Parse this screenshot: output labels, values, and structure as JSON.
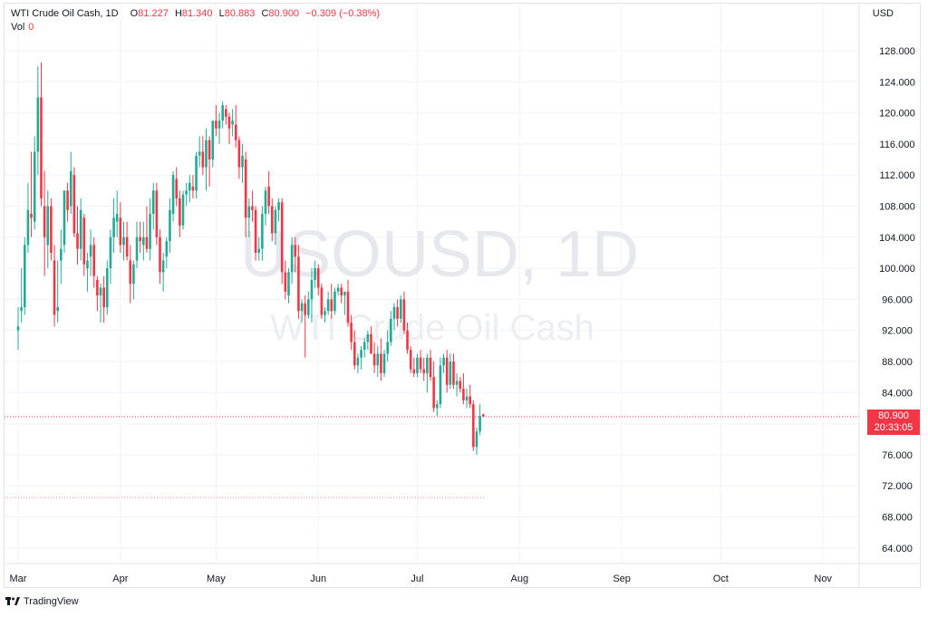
{
  "legend": {
    "symbol": "WTI Crude Oil Cash, 1D",
    "open_label": "O",
    "open": "81.227",
    "high_label": "H",
    "high": "81.340",
    "low_label": "L",
    "low": "80.883",
    "close_label": "C",
    "close": "80.900",
    "change": "−0.309 (−0.38%)",
    "vol_label": "Vol",
    "vol_value": "0"
  },
  "currency": "USD",
  "watermark": {
    "ticker": "USOUSD, 1D",
    "name": "WTI Crude Oil Cash"
  },
  "last_price": {
    "value": "80.900",
    "countdown": "20:33:05"
  },
  "footer": {
    "brand": "TradingView"
  },
  "colors": {
    "up": "#22ab94",
    "down": "#f23645",
    "grid": "#f0f3fa",
    "axis_text": "#131722"
  },
  "chart_data": {
    "type": "candlestick",
    "title": "WTI Crude Oil Cash, 1D",
    "ylim": [
      60,
      132
    ],
    "y_ticks": [
      64,
      68,
      72,
      76,
      80,
      84,
      88,
      92,
      96,
      100,
      104,
      108,
      112,
      116,
      120,
      124,
      128
    ],
    "x_ticks": [
      "Mar",
      "Apr",
      "May",
      "Jun",
      "Jul",
      "Aug",
      "Sep",
      "Oct",
      "Nov"
    ],
    "x_tick_days": [
      1,
      32,
      61,
      92,
      122,
      153,
      184,
      214,
      245
    ],
    "last_price_line": 80.9,
    "reference_line": 70.5,
    "candles": [
      {
        "d": 1,
        "o": 92.0,
        "h": 95.0,
        "l": 89.5,
        "c": 92.5
      },
      {
        "d": 2,
        "o": 94.5,
        "h": 100.0,
        "l": 93.0,
        "c": 95.0
      },
      {
        "d": 3,
        "o": 95.0,
        "h": 104.0,
        "l": 94.0,
        "c": 103.0
      },
      {
        "d": 4,
        "o": 103.0,
        "h": 111.0,
        "l": 102.0,
        "c": 107.5
      },
      {
        "d": 5,
        "o": 107.0,
        "h": 115.0,
        "l": 104.0,
        "c": 106.5
      },
      {
        "d": 6,
        "o": 106.0,
        "h": 117.0,
        "l": 105.0,
        "c": 115.0
      },
      {
        "d": 7,
        "o": 115.0,
        "h": 126.0,
        "l": 112.0,
        "c": 122.0
      },
      {
        "d": 8,
        "o": 122.0,
        "h": 126.5,
        "l": 108.0,
        "c": 109.0
      },
      {
        "d": 9,
        "o": 108.0,
        "h": 112.5,
        "l": 99.0,
        "c": 104.0
      },
      {
        "d": 10,
        "o": 103.0,
        "h": 110.0,
        "l": 100.0,
        "c": 108.0
      },
      {
        "d": 11,
        "o": 108.0,
        "h": 109.0,
        "l": 101.0,
        "c": 102.0
      },
      {
        "d": 12,
        "o": 101.0,
        "h": 103.0,
        "l": 92.5,
        "c": 94.0
      },
      {
        "d": 13,
        "o": 94.5,
        "h": 101.0,
        "l": 93.0,
        "c": 95.0
      },
      {
        "d": 14,
        "o": 101.0,
        "h": 105.0,
        "l": 98.0,
        "c": 102.5
      },
      {
        "d": 15,
        "o": 103.0,
        "h": 110.0,
        "l": 102.0,
        "c": 110.0
      },
      {
        "d": 16,
        "o": 110.0,
        "h": 111.0,
        "l": 106.0,
        "c": 107.5
      },
      {
        "d": 17,
        "o": 108.0,
        "h": 115.0,
        "l": 107.0,
        "c": 112.5
      },
      {
        "d": 18,
        "o": 112.0,
        "h": 113.0,
        "l": 104.0,
        "c": 104.5
      },
      {
        "d": 19,
        "o": 104.5,
        "h": 108.0,
        "l": 100.5,
        "c": 102.5
      },
      {
        "d": 20,
        "o": 102.5,
        "h": 109.0,
        "l": 101.0,
        "c": 107.5
      },
      {
        "d": 21,
        "o": 106.5,
        "h": 107.0,
        "l": 99.0,
        "c": 100.5
      },
      {
        "d": 22,
        "o": 100.0,
        "h": 102.0,
        "l": 97.0,
        "c": 101.0
      },
      {
        "d": 23,
        "o": 101.5,
        "h": 105.0,
        "l": 99.0,
        "c": 103.0
      },
      {
        "d": 24,
        "o": 103.0,
        "h": 104.0,
        "l": 97.5,
        "c": 99.0
      },
      {
        "d": 25,
        "o": 98.5,
        "h": 99.0,
        "l": 94.5,
        "c": 96.5
      },
      {
        "d": 26,
        "o": 96.5,
        "h": 98.0,
        "l": 93.0,
        "c": 97.5
      },
      {
        "d": 27,
        "o": 97.5,
        "h": 99.0,
        "l": 93.0,
        "c": 95.0
      },
      {
        "d": 28,
        "o": 95.0,
        "h": 101.0,
        "l": 94.0,
        "c": 100.0
      },
      {
        "d": 29,
        "o": 100.0,
        "h": 105.0,
        "l": 98.0,
        "c": 104.0
      },
      {
        "d": 30,
        "o": 104.0,
        "h": 109.0,
        "l": 102.0,
        "c": 106.5
      },
      {
        "d": 31,
        "o": 106.0,
        "h": 110.0,
        "l": 104.0,
        "c": 107.0
      },
      {
        "d": 32,
        "o": 106.5,
        "h": 108.5,
        "l": 102.0,
        "c": 103.0
      },
      {
        "d": 33,
        "o": 103.0,
        "h": 106.0,
        "l": 101.0,
        "c": 104.0
      },
      {
        "d": 34,
        "o": 104.0,
        "h": 106.0,
        "l": 101.0,
        "c": 101.5
      },
      {
        "d": 35,
        "o": 101.0,
        "h": 103.0,
        "l": 95.5,
        "c": 98.0
      },
      {
        "d": 36,
        "o": 98.0,
        "h": 101.0,
        "l": 96.0,
        "c": 100.5
      },
      {
        "d": 37,
        "o": 101.0,
        "h": 106.0,
        "l": 100.0,
        "c": 104.0
      },
      {
        "d": 38,
        "o": 104.0,
        "h": 106.0,
        "l": 102.0,
        "c": 103.5
      },
      {
        "d": 39,
        "o": 103.0,
        "h": 106.0,
        "l": 101.0,
        "c": 104.0
      },
      {
        "d": 40,
        "o": 104.0,
        "h": 108.0,
        "l": 102.0,
        "c": 102.5
      },
      {
        "d": 41,
        "o": 102.5,
        "h": 109.0,
        "l": 101.0,
        "c": 107.0
      },
      {
        "d": 42,
        "o": 107.0,
        "h": 111.0,
        "l": 105.0,
        "c": 110.0
      },
      {
        "d": 43,
        "o": 110.0,
        "h": 111.0,
        "l": 103.0,
        "c": 104.0
      },
      {
        "d": 44,
        "o": 104.0,
        "h": 105.0,
        "l": 98.0,
        "c": 99.5
      },
      {
        "d": 45,
        "o": 99.5,
        "h": 102.0,
        "l": 97.0,
        "c": 101.0
      },
      {
        "d": 46,
        "o": 101.5,
        "h": 104.0,
        "l": 100.0,
        "c": 103.5
      },
      {
        "d": 47,
        "o": 103.5,
        "h": 109.0,
        "l": 102.0,
        "c": 107.5
      },
      {
        "d": 48,
        "o": 107.0,
        "h": 112.5,
        "l": 106.0,
        "c": 112.0
      },
      {
        "d": 49,
        "o": 111.5,
        "h": 113.0,
        "l": 108.0,
        "c": 109.0
      },
      {
        "d": 50,
        "o": 109.0,
        "h": 110.0,
        "l": 104.0,
        "c": 105.5
      },
      {
        "d": 51,
        "o": 105.5,
        "h": 110.0,
        "l": 105.0,
        "c": 109.5
      },
      {
        "d": 52,
        "o": 109.5,
        "h": 111.0,
        "l": 108.0,
        "c": 110.0
      },
      {
        "d": 53,
        "o": 110.0,
        "h": 112.0,
        "l": 108.5,
        "c": 111.0
      },
      {
        "d": 54,
        "o": 110.5,
        "h": 112.0,
        "l": 109.0,
        "c": 110.0
      },
      {
        "d": 55,
        "o": 110.0,
        "h": 115.0,
        "l": 109.0,
        "c": 114.5
      },
      {
        "d": 56,
        "o": 114.5,
        "h": 117.0,
        "l": 113.0,
        "c": 115.0
      },
      {
        "d": 57,
        "o": 115.0,
        "h": 117.0,
        "l": 112.0,
        "c": 113.0
      },
      {
        "d": 58,
        "o": 113.0,
        "h": 118.0,
        "l": 110.0,
        "c": 116.5
      },
      {
        "d": 59,
        "o": 116.5,
        "h": 117.0,
        "l": 110.5,
        "c": 114.0
      },
      {
        "d": 60,
        "o": 114.0,
        "h": 119.0,
        "l": 113.0,
        "c": 119.0
      },
      {
        "d": 61,
        "o": 119.0,
        "h": 121.0,
        "l": 117.0,
        "c": 118.0
      },
      {
        "d": 62,
        "o": 118.0,
        "h": 120.0,
        "l": 116.0,
        "c": 119.0
      },
      {
        "d": 63,
        "o": 119.0,
        "h": 121.5,
        "l": 118.0,
        "c": 121.0
      },
      {
        "d": 64,
        "o": 120.5,
        "h": 121.0,
        "l": 118.5,
        "c": 119.5
      },
      {
        "d": 65,
        "o": 119.5,
        "h": 120.0,
        "l": 116.0,
        "c": 118.0
      },
      {
        "d": 66,
        "o": 118.5,
        "h": 120.5,
        "l": 117.0,
        "c": 119.0
      },
      {
        "d": 67,
        "o": 118.5,
        "h": 121.0,
        "l": 115.5,
        "c": 116.5
      },
      {
        "d": 68,
        "o": 116.5,
        "h": 117.0,
        "l": 111.5,
        "c": 113.0
      },
      {
        "d": 69,
        "o": 113.0,
        "h": 116.0,
        "l": 111.0,
        "c": 114.5
      },
      {
        "d": 70,
        "o": 114.0,
        "h": 115.0,
        "l": 104.0,
        "c": 106.5
      },
      {
        "d": 71,
        "o": 106.5,
        "h": 109.0,
        "l": 104.0,
        "c": 108.0
      },
      {
        "d": 72,
        "o": 108.0,
        "h": 110.0,
        "l": 106.0,
        "c": 107.5
      },
      {
        "d": 73,
        "o": 107.5,
        "h": 108.0,
        "l": 101.0,
        "c": 102.0
      },
      {
        "d": 74,
        "o": 102.0,
        "h": 104.0,
        "l": 101.0,
        "c": 102.5
      },
      {
        "d": 75,
        "o": 102.5,
        "h": 108.0,
        "l": 101.0,
        "c": 107.0
      },
      {
        "d": 76,
        "o": 107.0,
        "h": 110.5,
        "l": 105.5,
        "c": 110.0
      },
      {
        "d": 77,
        "o": 110.5,
        "h": 112.5,
        "l": 107.0,
        "c": 108.0
      },
      {
        "d": 78,
        "o": 108.0,
        "h": 109.0,
        "l": 103.5,
        "c": 104.5
      },
      {
        "d": 79,
        "o": 104.5,
        "h": 108.0,
        "l": 103.0,
        "c": 107.5
      },
      {
        "d": 80,
        "o": 107.5,
        "h": 109.0,
        "l": 106.0,
        "c": 108.5
      },
      {
        "d": 81,
        "o": 108.5,
        "h": 109.0,
        "l": 98.0,
        "c": 99.5
      },
      {
        "d": 82,
        "o": 99.5,
        "h": 101.0,
        "l": 96.0,
        "c": 97.0
      },
      {
        "d": 83,
        "o": 96.5,
        "h": 100.0,
        "l": 95.5,
        "c": 99.5
      },
      {
        "d": 84,
        "o": 99.5,
        "h": 104.0,
        "l": 98.0,
        "c": 103.0
      },
      {
        "d": 85,
        "o": 103.0,
        "h": 104.0,
        "l": 99.5,
        "c": 101.5
      },
      {
        "d": 86,
        "o": 101.5,
        "h": 103.0,
        "l": 93.5,
        "c": 94.5
      },
      {
        "d": 87,
        "o": 94.5,
        "h": 96.0,
        "l": 93.0,
        "c": 95.5
      },
      {
        "d": 88,
        "o": 95.5,
        "h": 96.5,
        "l": 88.5,
        "c": 94.0
      },
      {
        "d": 89,
        "o": 94.0,
        "h": 97.0,
        "l": 93.5,
        "c": 96.0
      },
      {
        "d": 90,
        "o": 96.0,
        "h": 100.0,
        "l": 93.0,
        "c": 98.5
      },
      {
        "d": 91,
        "o": 98.5,
        "h": 101.0,
        "l": 97.5,
        "c": 100.0
      },
      {
        "d": 92,
        "o": 100.0,
        "h": 100.5,
        "l": 96.5,
        "c": 97.5
      },
      {
        "d": 93,
        "o": 97.5,
        "h": 98.0,
        "l": 93.5,
        "c": 94.0
      },
      {
        "d": 94,
        "o": 94.0,
        "h": 95.0,
        "l": 93.0,
        "c": 94.5
      },
      {
        "d": 95,
        "o": 94.5,
        "h": 97.0,
        "l": 94.0,
        "c": 96.0
      },
      {
        "d": 96,
        "o": 96.0,
        "h": 98.0,
        "l": 93.5,
        "c": 94.5
      },
      {
        "d": 97,
        "o": 94.5,
        "h": 97.5,
        "l": 94.0,
        "c": 97.0
      },
      {
        "d": 98,
        "o": 97.0,
        "h": 98.0,
        "l": 96.5,
        "c": 97.5
      },
      {
        "d": 99,
        "o": 97.5,
        "h": 98.0,
        "l": 95.5,
        "c": 96.5
      },
      {
        "d": 100,
        "o": 96.5,
        "h": 97.0,
        "l": 94.0,
        "c": 97.0
      },
      {
        "d": 101,
        "o": 97.0,
        "h": 98.5,
        "l": 92.5,
        "c": 93.0
      },
      {
        "d": 102,
        "o": 93.0,
        "h": 94.0,
        "l": 89.5,
        "c": 90.5
      },
      {
        "d": 103,
        "o": 90.5,
        "h": 92.0,
        "l": 87.0,
        "c": 87.5
      },
      {
        "d": 104,
        "o": 87.5,
        "h": 89.0,
        "l": 86.5,
        "c": 88.5
      },
      {
        "d": 105,
        "o": 88.5,
        "h": 90.0,
        "l": 87.0,
        "c": 89.5
      },
      {
        "d": 106,
        "o": 89.5,
        "h": 91.0,
        "l": 88.5,
        "c": 90.5
      },
      {
        "d": 107,
        "o": 90.5,
        "h": 92.0,
        "l": 89.5,
        "c": 91.5
      },
      {
        "d": 108,
        "o": 91.5,
        "h": 92.5,
        "l": 89.0,
        "c": 89.0
      },
      {
        "d": 109,
        "o": 89.0,
        "h": 90.5,
        "l": 86.5,
        "c": 87.5
      },
      {
        "d": 110,
        "o": 87.5,
        "h": 90.0,
        "l": 86.0,
        "c": 89.0
      },
      {
        "d": 111,
        "o": 89.0,
        "h": 91.0,
        "l": 85.5,
        "c": 86.5
      },
      {
        "d": 112,
        "o": 86.5,
        "h": 89.5,
        "l": 86.0,
        "c": 89.0
      },
      {
        "d": 113,
        "o": 89.0,
        "h": 92.0,
        "l": 88.0,
        "c": 90.5
      },
      {
        "d": 114,
        "o": 90.5,
        "h": 94.5,
        "l": 90.0,
        "c": 93.5
      },
      {
        "d": 115,
        "o": 93.5,
        "h": 95.5,
        "l": 92.0,
        "c": 95.0
      },
      {
        "d": 116,
        "o": 95.0,
        "h": 96.0,
        "l": 92.5,
        "c": 93.5
      },
      {
        "d": 117,
        "o": 93.5,
        "h": 96.5,
        "l": 93.0,
        "c": 96.0
      },
      {
        "d": 118,
        "o": 96.0,
        "h": 97.0,
        "l": 91.5,
        "c": 92.0
      },
      {
        "d": 119,
        "o": 92.0,
        "h": 93.0,
        "l": 89.0,
        "c": 89.5
      },
      {
        "d": 120,
        "o": 89.5,
        "h": 90.0,
        "l": 86.5,
        "c": 87.0
      },
      {
        "d": 121,
        "o": 87.0,
        "h": 88.5,
        "l": 86.0,
        "c": 86.5
      },
      {
        "d": 122,
        "o": 86.5,
        "h": 89.0,
        "l": 86.0,
        "c": 88.5
      },
      {
        "d": 123,
        "o": 88.5,
        "h": 89.5,
        "l": 86.5,
        "c": 87.0
      },
      {
        "d": 124,
        "o": 87.0,
        "h": 88.5,
        "l": 85.5,
        "c": 86.5
      },
      {
        "d": 125,
        "o": 86.5,
        "h": 89.0,
        "l": 84.0,
        "c": 88.5
      },
      {
        "d": 126,
        "o": 88.5,
        "h": 89.5,
        "l": 85.5,
        "c": 86.0
      },
      {
        "d": 127,
        "o": 86.0,
        "h": 88.0,
        "l": 81.5,
        "c": 82.0
      },
      {
        "d": 128,
        "o": 82.0,
        "h": 83.0,
        "l": 81.0,
        "c": 82.5
      },
      {
        "d": 129,
        "o": 82.5,
        "h": 88.5,
        "l": 82.0,
        "c": 87.5
      },
      {
        "d": 130,
        "o": 87.5,
        "h": 89.0,
        "l": 86.5,
        "c": 88.5
      },
      {
        "d": 131,
        "o": 88.5,
        "h": 89.5,
        "l": 84.0,
        "c": 85.0
      },
      {
        "d": 132,
        "o": 85.0,
        "h": 89.0,
        "l": 84.5,
        "c": 88.0
      },
      {
        "d": 133,
        "o": 88.0,
        "h": 89.0,
        "l": 84.5,
        "c": 85.0
      },
      {
        "d": 134,
        "o": 85.0,
        "h": 86.5,
        "l": 83.5,
        "c": 85.5
      },
      {
        "d": 135,
        "o": 85.5,
        "h": 86.0,
        "l": 84.0,
        "c": 84.5
      },
      {
        "d": 136,
        "o": 84.5,
        "h": 86.5,
        "l": 82.5,
        "c": 83.0
      },
      {
        "d": 137,
        "o": 83.0,
        "h": 84.5,
        "l": 82.0,
        "c": 83.5
      },
      {
        "d": 138,
        "o": 83.5,
        "h": 85.0,
        "l": 82.0,
        "c": 82.5
      },
      {
        "d": 139,
        "o": 82.5,
        "h": 83.0,
        "l": 76.5,
        "c": 77.0
      },
      {
        "d": 140,
        "o": 77.0,
        "h": 79.5,
        "l": 76.0,
        "c": 79.0
      },
      {
        "d": 141,
        "o": 79.0,
        "h": 82.5,
        "l": 78.5,
        "c": 81.0
      },
      {
        "d": 142,
        "o": 81.2,
        "h": 81.3,
        "l": 80.9,
        "c": 80.9
      }
    ]
  }
}
